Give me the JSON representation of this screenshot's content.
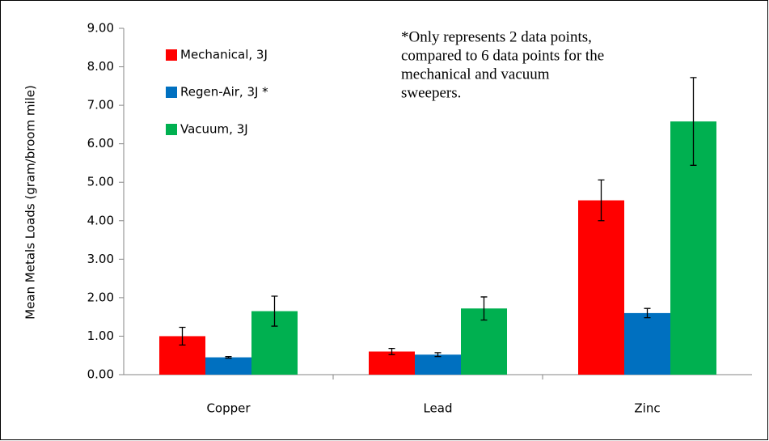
{
  "chart_data": {
    "type": "bar",
    "y_label": "Mean Metals  Loads (gram/broom mile)",
    "annotation": [
      "*Only represents 2 data points,",
      "compared to 6 data points for the",
      "mechanical and vacuum",
      "sweepers."
    ],
    "categories": [
      "Copper",
      "Lead",
      "Zinc"
    ],
    "series": [
      {
        "name": "Mechanical, 3J",
        "color": "#ff0000",
        "values": [
          1.0,
          0.6,
          4.53
        ],
        "errors": [
          0.23,
          0.08,
          0.53
        ]
      },
      {
        "name": "Regen-Air, 3J *",
        "color": "#0070c0",
        "values": [
          0.45,
          0.52,
          1.6
        ],
        "errors": [
          0.02,
          0.05,
          0.12
        ]
      },
      {
        "name": "Vacuum, 3J",
        "color": "#00b050",
        "values": [
          1.65,
          1.72,
          6.58
        ],
        "errors": [
          0.39,
          0.3,
          1.14
        ]
      }
    ],
    "ylim": [
      0,
      9
    ],
    "yticks": [
      {
        "value": 0,
        "label": "0.00"
      },
      {
        "value": 1,
        "label": "1.00"
      },
      {
        "value": 2,
        "label": "2.00"
      },
      {
        "value": 3,
        "label": "3.00"
      },
      {
        "value": 4,
        "label": "4.00"
      },
      {
        "value": 5,
        "label": "5.00"
      },
      {
        "value": 6,
        "label": "6.00"
      },
      {
        "value": 7,
        "label": "7.00"
      },
      {
        "value": 8,
        "label": "8.00"
      },
      {
        "value": 9,
        "label": "9.00"
      }
    ],
    "legend": "top-left",
    "grid": false
  }
}
